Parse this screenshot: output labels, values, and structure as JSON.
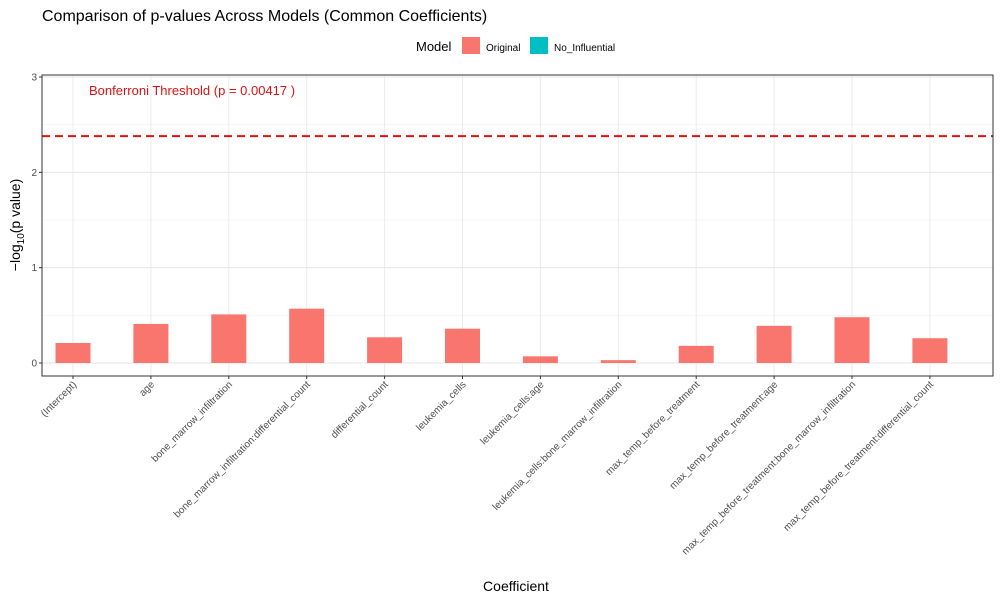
{
  "chart_data": {
    "type": "bar",
    "title": "Comparison of p-values Across Models (Common Coefficients)",
    "xlabel": "Coefficient",
    "ylabel": "−log",
    "ylabel_sub": "10",
    "ylabel_tail": "(p value)",
    "ylim": [
      0,
      3
    ],
    "yticks": [
      0,
      1,
      2,
      3
    ],
    "grid": true,
    "legend": {
      "title": "Model",
      "position": "top",
      "entries": [
        {
          "name": "Original",
          "color": "#F8766D"
        },
        {
          "name": "No_Influential",
          "color": "#00BFC4"
        }
      ]
    },
    "categories": [
      "(Intercept)",
      "age",
      "bone_marrow_infiltration",
      "bone_marrow_infiltration:differential_count",
      "differential_count",
      "leukemia_cells",
      "leukemia_cells:age",
      "leukemia_cells:bone_marrow_infiltration",
      "max_temp_before_treatment",
      "max_temp_before_treatment:age",
      "max_temp_before_treatment:bone_marrow_infiltration",
      "max_temp_before_treatment:differential_count"
    ],
    "series": [
      {
        "name": "Original",
        "color": "#F8766D",
        "values": [
          0.21,
          0.41,
          0.51,
          0.57,
          0.27,
          0.36,
          0.07,
          0.03,
          0.18,
          0.39,
          0.48,
          0.26
        ]
      }
    ],
    "threshold": {
      "value": 2.38,
      "color": "#DD1111",
      "label": "Bonferroni Threshold (p = 0.00417 )"
    }
  }
}
